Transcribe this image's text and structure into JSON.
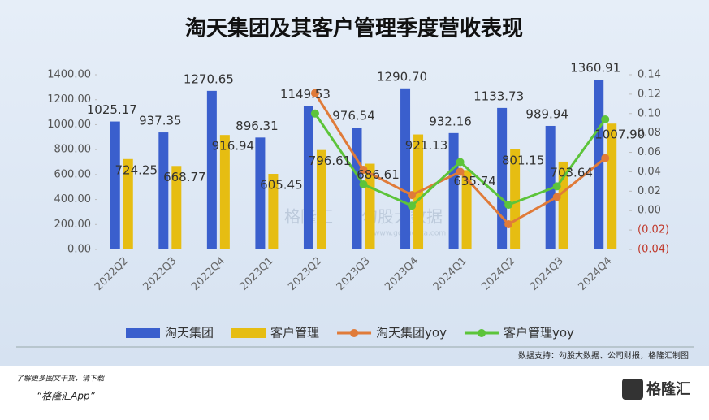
{
  "chart_data": {
    "type": "bar_line",
    "title": "淘天集团及其客户管理季度营收表现",
    "categories": [
      "2022Q2",
      "2022Q3",
      "2022Q4",
      "2023Q1",
      "2023Q2",
      "2023Q3",
      "2023Q4",
      "2024Q1",
      "2024Q2",
      "2024Q3",
      "2024Q4"
    ],
    "series": [
      {
        "name": "淘天集团",
        "type": "bar",
        "color": "#3a5fcd",
        "values": [
          1025.17,
          937.35,
          1270.65,
          896.31,
          1149.53,
          976.54,
          1290.7,
          932.16,
          1133.73,
          989.94,
          1360.91
        ],
        "value_labels": [
          "1025.17",
          "937.35",
          "1270.65",
          "896.31",
          "1149.53",
          "976.54",
          "1290.70",
          "932.16",
          "1133.73",
          "989.94",
          "1360.91"
        ]
      },
      {
        "name": "客户管理",
        "type": "bar",
        "color": "#e6bd12",
        "values": [
          724.25,
          668.77,
          916.94,
          605.45,
          796.61,
          686.61,
          921.13,
          635.74,
          801.15,
          703.64,
          1007.9
        ],
        "value_labels": [
          "724.25",
          "668.77",
          "916.94",
          "605.45",
          "796.61",
          "686.61",
          "921.13",
          "635.74",
          "801.15",
          "703.64",
          "1007.90"
        ]
      },
      {
        "name": "淘天集团yoy",
        "type": "line",
        "axis": "y2",
        "color": "#e07b39",
        "values": [
          null,
          null,
          null,
          null,
          0.121,
          0.042,
          0.016,
          0.04,
          -0.014,
          0.014,
          0.054
        ]
      },
      {
        "name": "客户管理yoy",
        "type": "line",
        "axis": "y2",
        "color": "#5cc43a",
        "values": [
          null,
          null,
          null,
          null,
          0.1,
          0.027,
          0.005,
          0.05,
          0.006,
          0.025,
          0.094
        ]
      }
    ],
    "ylim": [
      0,
      1400
    ],
    "yticks": [
      {
        "value": 0,
        "label": "0.00"
      },
      {
        "value": 200,
        "label": "200.00"
      },
      {
        "value": 400,
        "label": "400.00"
      },
      {
        "value": 600,
        "label": "600.00"
      },
      {
        "value": 800,
        "label": "800.00"
      },
      {
        "value": 1000,
        "label": "1000.00"
      },
      {
        "value": 1200,
        "label": "1200.00"
      },
      {
        "value": 1400,
        "label": "1400.00"
      }
    ],
    "y2lim": [
      -0.04,
      0.14
    ],
    "y2ticks": [
      {
        "value": -0.04,
        "label": "(0.04)"
      },
      {
        "value": -0.02,
        "label": "(0.02)"
      },
      {
        "value": 0,
        "label": "0.00"
      },
      0.02,
      0.04,
      0.06,
      0.08,
      {
        "value": 0.1,
        "label": "0.10"
      },
      0.12,
      0.14
    ],
    "y2_negative_color": "#c0392b",
    "source": "数据支持：勾股大数据、公司财报，格隆汇制图",
    "watermark": [
      "格隆汇",
      "勾股大数据",
      "www.gogudata.com"
    ],
    "footer": {
      "line1": "了解更多图文干货，请下载",
      "line2": "“格隆汇App”",
      "logo": "格隆汇"
    }
  }
}
